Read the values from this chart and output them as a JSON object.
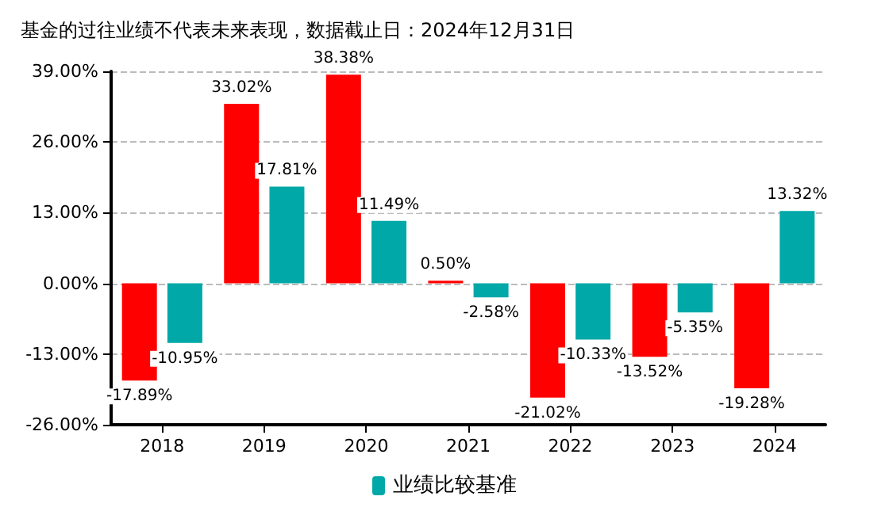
{
  "chart_data": {
    "type": "bar",
    "title": "基金的过往业绩不代表未来表现，数据截止日：2024年12月31日",
    "categories": [
      "2018",
      "2019",
      "2020",
      "2021",
      "2022",
      "2023",
      "2024"
    ],
    "series": [
      {
        "color": "#ff0000",
        "values": [
          -17.89,
          33.02,
          38.38,
          0.5,
          -21.02,
          -13.52,
          -19.28
        ],
        "value_labels": [
          "-17.89%",
          "33.02%",
          "38.38%",
          "0.50%",
          "-21.02%",
          "-13.52%",
          "-19.28%"
        ]
      },
      {
        "name": "业绩比较基准",
        "color": "#00a8a8",
        "values": [
          -10.95,
          17.81,
          11.49,
          -2.58,
          -10.33,
          -5.35,
          13.32
        ],
        "value_labels": [
          "-10.95%",
          "17.81%",
          "11.49%",
          "-2.58%",
          "-10.33%",
          "-5.35%",
          "13.32%"
        ]
      }
    ],
    "ylim": [
      -26,
      39
    ],
    "yticks": [
      {
        "value": -26,
        "label": "-26.00%"
      },
      {
        "value": -13,
        "label": "-13.00%"
      },
      {
        "value": 0,
        "label": "0.00%"
      },
      {
        "value": 13,
        "label": "13.00%"
      },
      {
        "value": 26,
        "label": "26.00%"
      },
      {
        "value": 39,
        "label": "39.00%"
      }
    ],
    "grid": "y",
    "legend": "bottom"
  }
}
